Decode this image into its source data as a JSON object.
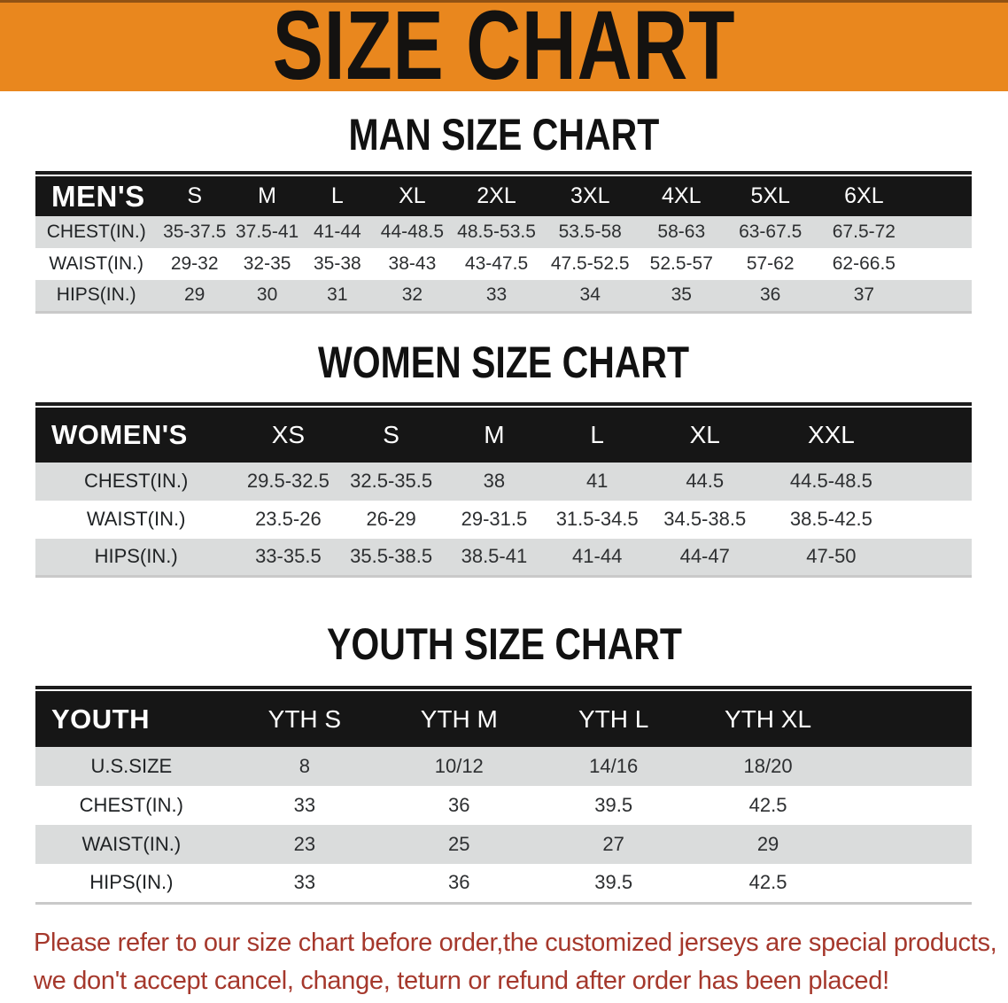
{
  "banner": {
    "title": "SIZE CHART"
  },
  "colors": {
    "banner_bg": "#E9871E",
    "header_bg": "#161616",
    "row_gray": "#DADCDC",
    "disclaimer_color": "#A5382C"
  },
  "sections": [
    {
      "id": "men",
      "title": "MAN SIZE CHART",
      "table": {
        "label": "MEN'S",
        "col_widths": [
          "13%",
          "8%",
          "7.5%",
          "7.5%",
          "8.5%",
          "9.5%",
          "10.5%",
          "9%",
          "10%",
          "10%",
          "6.5%"
        ],
        "sizes": [
          "S",
          "M",
          "L",
          "XL",
          "2XL",
          "3XL",
          "4XL",
          "5XL",
          "6XL"
        ],
        "rows": [
          {
            "label": "CHEST(IN.)",
            "values": [
              "35-37.5",
              "37.5-41",
              "41-44",
              "44-48.5",
              "48.5-53.5",
              "53.5-58",
              "58-63",
              "63-67.5",
              "67.5-72"
            ]
          },
          {
            "label": "WAIST(IN.)",
            "values": [
              "29-32",
              "32-35",
              "35-38",
              "38-43",
              "43-47.5",
              "47.5-52.5",
              "52.5-57",
              "57-62",
              "62-66.5"
            ]
          },
          {
            "label": "HIPS(IN.)",
            "values": [
              "29",
              "30",
              "31",
              "32",
              "33",
              "34",
              "35",
              "36",
              "37"
            ]
          }
        ]
      }
    },
    {
      "id": "women",
      "title": "WOMEN SIZE CHART",
      "table": {
        "label": "WOMEN'S",
        "col_widths": [
          "21.5%",
          "11%",
          "11%",
          "11%",
          "11%",
          "12%",
          "15%",
          "7.5%"
        ],
        "sizes": [
          "XS",
          "S",
          "M",
          "L",
          "XL",
          "XXL"
        ],
        "rows": [
          {
            "label": "CHEST(IN.)",
            "values": [
              "29.5-32.5",
              "32.5-35.5",
              "38",
              "41",
              "44.5",
              "44.5-48.5"
            ]
          },
          {
            "label": "WAIST(IN.)",
            "values": [
              "23.5-26",
              "26-29",
              "29-31.5",
              "31.5-34.5",
              "34.5-38.5",
              "38.5-42.5"
            ]
          },
          {
            "label": "HIPS(IN.)",
            "values": [
              "33-35.5",
              "35.5-38.5",
              "38.5-41",
              "41-44",
              "44-47",
              "47-50"
            ]
          }
        ]
      }
    },
    {
      "id": "youth",
      "title": "YOUTH SIZE CHART",
      "table": {
        "label": "YOUTH",
        "col_widths": [
          "20.5%",
          "16.5%",
          "16.5%",
          "16.5%",
          "16.5%",
          "13.5%"
        ],
        "sizes": [
          "YTH S",
          "YTH M",
          "YTH L",
          "YTH XL"
        ],
        "rows": [
          {
            "label": "U.S.SIZE",
            "values": [
              "8",
              "10/12",
              "14/16",
              "18/20"
            ]
          },
          {
            "label": "CHEST(IN.)",
            "values": [
              "33",
              "36",
              "39.5",
              "42.5"
            ]
          },
          {
            "label": "WAIST(IN.)",
            "values": [
              "23",
              "25",
              "27",
              "29"
            ]
          },
          {
            "label": "HIPS(IN.)",
            "values": [
              "33",
              "36",
              "39.5",
              "42.5"
            ]
          }
        ]
      }
    }
  ],
  "disclaimer": {
    "line1": "Please refer to our size chart before order,the customized jerseys are special products,",
    "line2": "we don't accept cancel, change, teturn or refund after order has been placed!"
  }
}
